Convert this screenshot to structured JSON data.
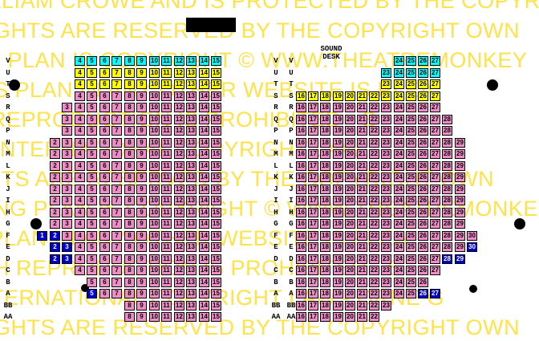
{
  "watermark": {
    "lines": [
      "VILLIAM CROWE AND IS PROTECTED BY THE COPYRIGHT",
      "GHTS ARE RESERVED BY THE COPYRIGHT OWN",
      "NG PLAN IS COPYRIGHT © WWW.THEATREMONKEY",
      "S PLAN IN ANY OTHER WEBSITE IS PLEA",
      "H REPRODUCTION IS PROHIBITED - S",
      "INTERNATIONAL COPYRIGHT LAW",
      "GHTS ARE RESERVED BY THE COPYRIGHT OWN",
      "NG PLAN IS COPYRIGHT © WWW.THEATREMONKEY",
      "S PLAN IN ANY OTHER WEBSITE IS PLEA",
      "H REPRODUCTION IS PROHIBITED - S",
      "INTERNATIONAL COPYRIGHT LAW - ORNE G",
      "GHTS ARE RESERVED BY THE COPYRIGHT OWN"
    ]
  },
  "sound_desk": {
    "line1": "SOUND",
    "line2": "DESK"
  },
  "colors": {
    "pink": "#f08cc8",
    "yellow": "#ffff00",
    "cyan": "#00ffff",
    "blue": "#0000cc",
    "blue_text": "#ffffff"
  },
  "row_labels": [
    "V",
    "U",
    "T",
    "S",
    "R",
    "Q",
    "P",
    "N",
    "M",
    "L",
    "K",
    "J",
    "I",
    "H",
    "G",
    "F",
    "E",
    "D",
    "C",
    "B",
    "A",
    "BB",
    "AA"
  ],
  "left_rows": {
    "V": {
      "start": 4,
      "end": 15,
      "color": "cyan"
    },
    "U": {
      "start": 4,
      "end": 15,
      "color": "yellow"
    },
    "T": {
      "start": 4,
      "end": 15,
      "color": "yellow"
    },
    "S": {
      "start": 4,
      "end": 15,
      "color": "pink"
    },
    "R": {
      "start": 3,
      "end": 15,
      "color": "pink"
    },
    "Q": {
      "start": 3,
      "end": 15,
      "color": "pink"
    },
    "P": {
      "start": 3,
      "end": 15,
      "color": "pink"
    },
    "N": {
      "start": 2,
      "end": 15,
      "color": "pink"
    },
    "M": {
      "start": 2,
      "end": 15,
      "color": "pink"
    },
    "L": {
      "start": 2,
      "end": 15,
      "color": "pink"
    },
    "K": {
      "start": 2,
      "end": 15,
      "color": "pink"
    },
    "J": {
      "start": 2,
      "end": 15,
      "color": "pink"
    },
    "I": {
      "start": 2,
      "end": 15,
      "color": "pink"
    },
    "H": {
      "start": 2,
      "end": 15,
      "color": "pink"
    },
    "G": {
      "start": 2,
      "end": 15,
      "color": "pink"
    },
    "F": {
      "start": 1,
      "end": 15,
      "color": "pink",
      "blue": [
        1,
        2
      ]
    },
    "E": {
      "start": 2,
      "end": 15,
      "color": "pink",
      "blue": [
        2,
        3
      ]
    },
    "D": {
      "start": 2,
      "end": 15,
      "color": "pink",
      "blue": [
        2,
        3
      ]
    },
    "C": {
      "start": 4,
      "end": 15,
      "color": "pink"
    },
    "B": {
      "start": 5,
      "end": 15,
      "color": "pink"
    },
    "A": {
      "start": 5,
      "end": 15,
      "color": "pink",
      "blue": [
        5
      ]
    },
    "BB": {
      "start": 8,
      "end": 15,
      "color": "pink"
    },
    "AA": {
      "start": 8,
      "end": 15,
      "color": "pink"
    }
  },
  "right_rows": {
    "V": {
      "start": 24,
      "end": 27,
      "color": "cyan"
    },
    "U": {
      "start": 23,
      "end": 27,
      "color": "cyan"
    },
    "T": {
      "start": 23,
      "end": 27,
      "color": "yellow"
    },
    "S": {
      "start": 16,
      "end": 27,
      "color": "yellow"
    },
    "R": {
      "start": 16,
      "end": 27,
      "color": "pink"
    },
    "Q": {
      "start": 16,
      "end": 28,
      "color": "pink"
    },
    "P": {
      "start": 16,
      "end": 28,
      "color": "pink"
    },
    "N": {
      "start": 16,
      "end": 29,
      "color": "pink"
    },
    "M": {
      "start": 16,
      "end": 29,
      "color": "pink"
    },
    "L": {
      "start": 16,
      "end": 29,
      "color": "pink"
    },
    "K": {
      "start": 16,
      "end": 29,
      "color": "pink"
    },
    "J": {
      "start": 16,
      "end": 29,
      "color": "pink"
    },
    "I": {
      "start": 16,
      "end": 29,
      "color": "pink"
    },
    "H": {
      "start": 16,
      "end": 29,
      "color": "pink"
    },
    "G": {
      "start": 16,
      "end": 29,
      "color": "pink"
    },
    "F": {
      "start": 16,
      "end": 30,
      "color": "pink"
    },
    "E": {
      "start": 16,
      "end": 30,
      "color": "pink",
      "blue": [
        30
      ]
    },
    "D": {
      "start": 16,
      "end": 29,
      "color": "pink",
      "blue": [
        28,
        29
      ]
    },
    "C": {
      "start": 16,
      "end": 27,
      "color": "pink"
    },
    "B": {
      "start": 16,
      "end": 26,
      "color": "pink"
    },
    "A": {
      "start": 16,
      "end": 27,
      "color": "pink",
      "blue": [
        26,
        27
      ]
    },
    "BB": {
      "start": 16,
      "end": 23,
      "color": "pink"
    },
    "AA": {
      "start": 16,
      "end": 22,
      "color": "pink"
    }
  }
}
